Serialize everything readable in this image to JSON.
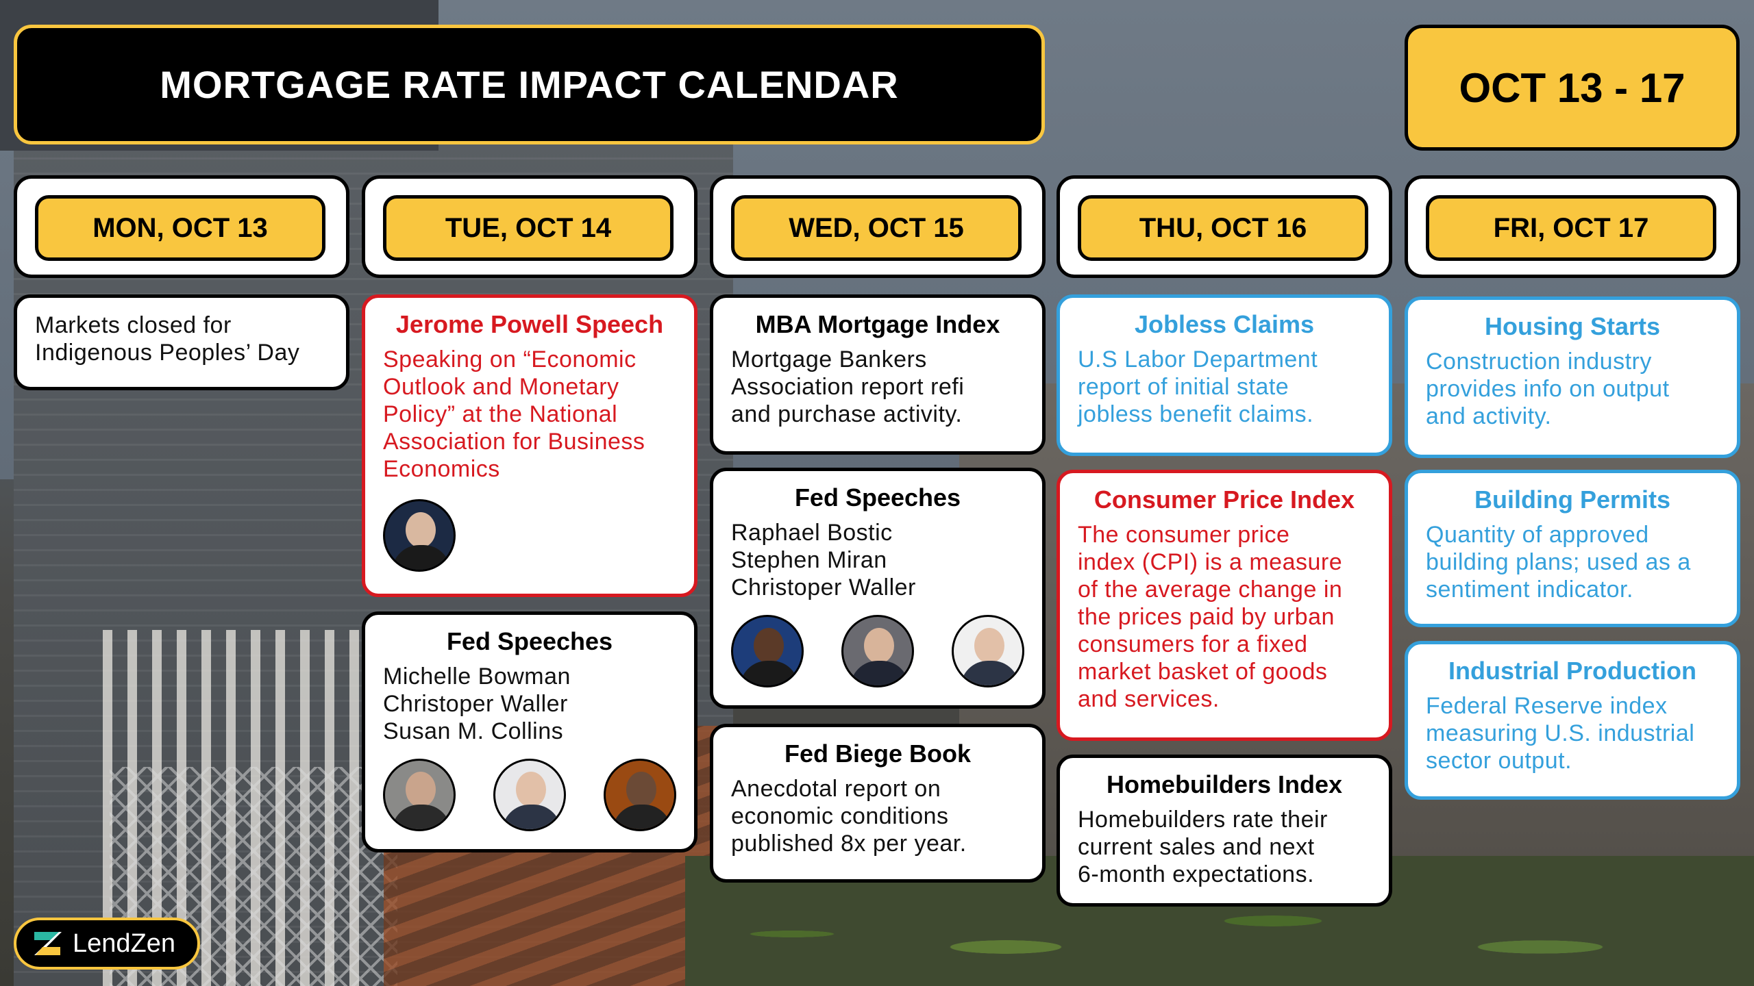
{
  "header": {
    "title": "MORTGAGE RATE IMPACT CALENDAR",
    "week": "OCT 13 - 17"
  },
  "days": [
    {
      "label": "MON, OCT 13"
    },
    {
      "label": "TUE, OCT 14"
    },
    {
      "label": "WED, OCT 15"
    },
    {
      "label": "THU, OCT 16"
    },
    {
      "label": "FRI, OCT 17"
    }
  ],
  "mon": {
    "closed": "Markets closed for\nIndigenous Peoples’ Day"
  },
  "tue": {
    "powell": {
      "title": "Jerome Powell Speech",
      "text": "Speaking on “Economic\nOutlook and Monetary\nPolicy” at the National\nAssociation for Business\nEconomics"
    },
    "fed": {
      "title": "Fed Speeches",
      "text": "Michelle Bowman\nChristoper Waller\nSusan M. Collins"
    }
  },
  "wed": {
    "mba": {
      "title": "MBA Mortgage Index",
      "text": "Mortgage Bankers\nAssociation report refi\nand purchase activity."
    },
    "fed": {
      "title": "Fed Speeches",
      "text": "Raphael Bostic\nStephen Miran\nChristoper Waller"
    },
    "biege": {
      "title": "Fed Biege Book",
      "text": "Anecdotal report on\neconomic conditions\npublished 8x per year."
    }
  },
  "thu": {
    "jobless": {
      "title": "Jobless Claims",
      "text": "U.S Labor Department\nreport of initial state\njobless benefit claims."
    },
    "cpi": {
      "title": "Consumer Price Index",
      "text": "The consumer price\nindex (CPI) is a measure\nof the average change in\nthe prices paid by urban\nconsumers for a fixed\nmarket basket of goods\nand services."
    },
    "homebuilders": {
      "title": "Homebuilders Index",
      "text": "Homebuilders rate their\ncurrent sales and next\n6-month expectations."
    }
  },
  "fri": {
    "starts": {
      "title": "Housing Starts",
      "text": "Construction industry\nprovides info on output\nand activity."
    },
    "permits": {
      "title": "Building Permits",
      "text": "Quantity of approved\nbuilding plans; used as a\nsentiment indicator."
    },
    "industrial": {
      "title": "Industrial Production",
      "text": "Federal Reserve index\nmeasuring U.S. industrial\nsector output."
    }
  },
  "brand": {
    "name": "LendZen"
  },
  "colors": {
    "accent": "#f9c63f",
    "red": "#d71920",
    "blue": "#34a0dc",
    "black": "#000000"
  }
}
